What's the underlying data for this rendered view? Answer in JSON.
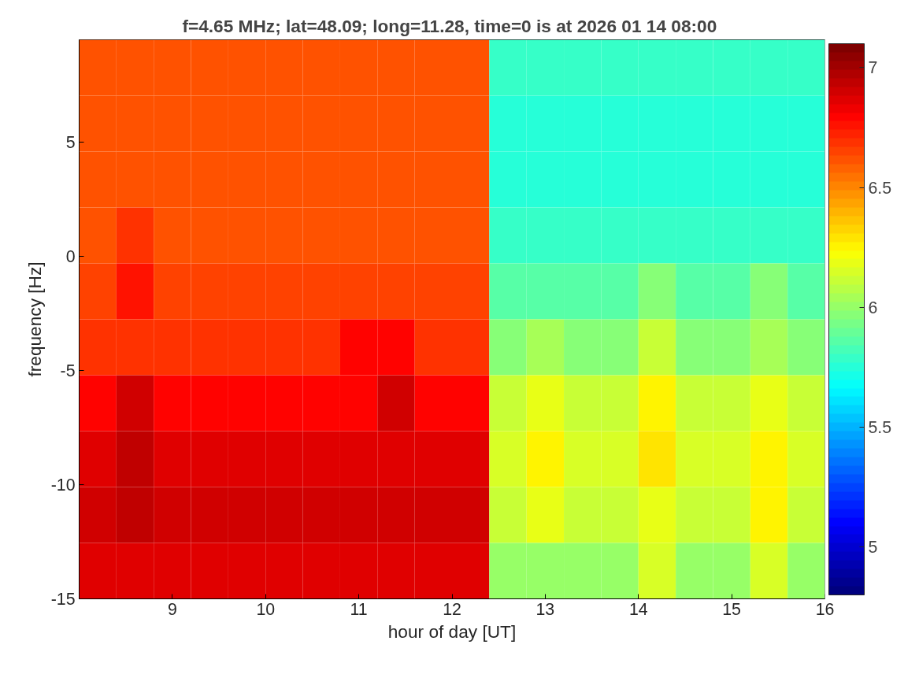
{
  "chart_data": {
    "type": "heatmap",
    "title": "f=4.65 MHz;  lat=48.09; long=11.28, time=0 is at 2026 01 14 08:00",
    "xlabel": "hour of day [UT]",
    "ylabel": "frequency [Hz]",
    "x": [
      8.2,
      8.6,
      9.0,
      9.4,
      9.8,
      10.2,
      10.6,
      11.0,
      11.4,
      11.8,
      12.2,
      12.6,
      13.0,
      13.4,
      13.8,
      14.2,
      14.6,
      15.0,
      15.4,
      15.8
    ],
    "y": [
      8.275,
      5.825,
      3.375,
      0.925,
      -1.525,
      -3.975,
      -6.425,
      -8.875,
      -11.325,
      -13.775
    ],
    "xlim": [
      8,
      16
    ],
    "xticks": [
      9,
      10,
      11,
      12,
      13,
      14,
      15,
      16
    ],
    "ylim": [
      -15,
      9.5
    ],
    "yticks": [
      -15,
      -10,
      -5,
      0,
      5
    ],
    "clim": [
      4.8,
      7.1
    ],
    "cticks": [
      5,
      5.5,
      6,
      6.5,
      7
    ],
    "grid": false,
    "cells": [
      [
        6.6,
        6.6,
        6.6,
        6.6,
        6.6,
        6.6,
        6.6,
        6.6,
        6.6,
        6.6,
        6.6,
        5.8,
        5.8,
        5.8,
        5.8,
        5.8,
        5.8,
        5.8,
        5.8,
        5.8
      ],
      [
        6.6,
        6.6,
        6.6,
        6.6,
        6.6,
        6.6,
        6.6,
        6.6,
        6.6,
        6.6,
        6.6,
        5.75,
        5.75,
        5.75,
        5.75,
        5.75,
        5.75,
        5.75,
        5.75,
        5.75
      ],
      [
        6.6,
        6.6,
        6.6,
        6.6,
        6.6,
        6.6,
        6.6,
        6.6,
        6.6,
        6.6,
        6.6,
        5.75,
        5.75,
        5.75,
        5.75,
        5.75,
        5.75,
        5.75,
        5.75,
        5.75
      ],
      [
        6.6,
        6.7,
        6.6,
        6.6,
        6.6,
        6.6,
        6.6,
        6.6,
        6.6,
        6.6,
        6.6,
        5.8,
        5.8,
        5.8,
        5.8,
        5.8,
        5.8,
        5.8,
        5.8,
        5.8
      ],
      [
        6.65,
        6.75,
        6.65,
        6.65,
        6.65,
        6.65,
        6.65,
        6.65,
        6.65,
        6.65,
        6.65,
        5.85,
        5.85,
        5.85,
        5.85,
        5.95,
        5.85,
        5.85,
        5.95,
        5.85
      ],
      [
        6.7,
        6.7,
        6.7,
        6.7,
        6.7,
        6.7,
        6.7,
        6.8,
        6.8,
        6.7,
        6.7,
        5.95,
        6.05,
        5.95,
        5.95,
        6.1,
        5.95,
        5.95,
        6.05,
        5.95
      ],
      [
        6.8,
        6.9,
        6.8,
        6.8,
        6.8,
        6.8,
        6.8,
        6.8,
        6.9,
        6.8,
        6.8,
        6.1,
        6.2,
        6.1,
        6.1,
        6.25,
        6.1,
        6.1,
        6.2,
        6.1
      ],
      [
        6.85,
        6.95,
        6.85,
        6.85,
        6.85,
        6.85,
        6.85,
        6.85,
        6.85,
        6.85,
        6.85,
        6.15,
        6.25,
        6.15,
        6.15,
        6.3,
        6.15,
        6.15,
        6.25,
        6.15
      ],
      [
        6.9,
        6.95,
        6.9,
        6.9,
        6.9,
        6.9,
        6.9,
        6.9,
        6.9,
        6.9,
        6.9,
        6.1,
        6.2,
        6.1,
        6.1,
        6.2,
        6.1,
        6.1,
        6.25,
        6.1
      ],
      [
        6.85,
        6.85,
        6.85,
        6.85,
        6.85,
        6.85,
        6.85,
        6.85,
        6.85,
        6.85,
        6.85,
        6.0,
        6.0,
        6.0,
        6.0,
        6.15,
        6.0,
        6.0,
        6.15,
        6.0
      ]
    ]
  }
}
